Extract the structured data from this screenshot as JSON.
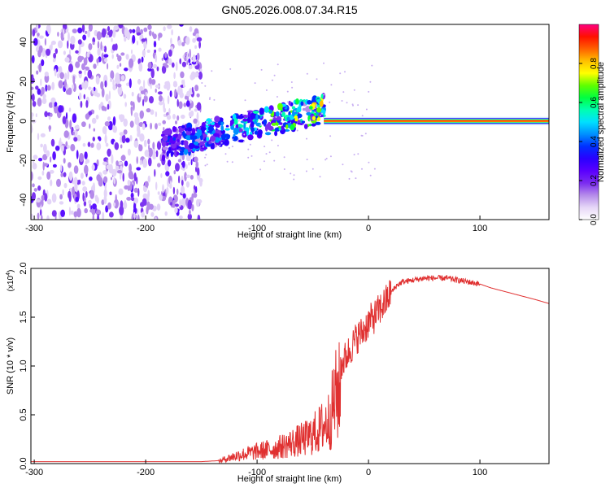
{
  "title": "GN05.2026.008.07.34.R15",
  "colors": {
    "snr_line": "#e03030",
    "colorbar_stops": [
      "#ffffff",
      "#e6d6f7",
      "#b58bea",
      "#7b2cf0",
      "#5a00ff",
      "#2a00ff",
      "#0030ff",
      "#0090ff",
      "#00e0ff",
      "#00ffb0",
      "#00ff40",
      "#60ff00",
      "#ffff00",
      "#ffc000",
      "#ff6000",
      "#ff1000",
      "#ff0080"
    ]
  },
  "chart_data": [
    {
      "type": "heatmap",
      "name": "spectrogram",
      "xlabel": "Height of straight line (km)",
      "ylabel": "Frequency (Hz)",
      "xlim": [
        -303,
        162
      ],
      "ylim": [
        -50,
        49
      ],
      "x_ticks": [
        -300,
        -200,
        -100,
        0,
        100
      ],
      "x_tick_labels": [
        "-300",
        "-200",
        "-100",
        "0",
        "100"
      ],
      "y_ticks": [
        -40,
        -20,
        0,
        20,
        40
      ],
      "y_tick_labels": [
        "-40",
        "-20",
        "0",
        "20",
        "40"
      ],
      "colorbar": {
        "label": "Normalized spectral amplitude",
        "range": [
          0,
          1
        ],
        "ticks": [
          0.0,
          0.2,
          0.4,
          0.6,
          0.8
        ],
        "tick_labels": [
          "0.0",
          "0.2",
          "0.4",
          "0.6",
          "0.8"
        ]
      },
      "regions": [
        {
          "x": [
            -303,
            -150
          ],
          "freq": [
            -50,
            49
          ],
          "amplitude": 0.08,
          "note": "noise"
        },
        {
          "x": [
            -185,
            -40
          ],
          "freq_center_start": -12,
          "freq_center_end": 6,
          "amplitude": 0.35
        },
        {
          "x": [
            -40,
            162
          ],
          "freq_center": 0,
          "amplitude": 0.95
        }
      ]
    },
    {
      "type": "line",
      "name": "snr",
      "xlabel": "Height of straight line (km)",
      "ylabel": "SNR (10 * v/v)",
      "exponent_label": "(x10",
      "exponent_power": "4",
      "exponent_close": ")",
      "xlim": [
        -303,
        162
      ],
      "ylim": [
        0,
        2.0
      ],
      "x_ticks": [
        -300,
        -200,
        -100,
        0,
        100
      ],
      "x_tick_labels": [
        "-300",
        "-200",
        "-100",
        "0",
        "100"
      ],
      "y_ticks": [
        0.0,
        0.5,
        1.0,
        1.5,
        2.0
      ],
      "y_tick_labels": [
        "0.0",
        "0.5",
        "1.0",
        "1.5",
        "2.0"
      ],
      "series": [
        {
          "x": [
            -303,
            -250,
            -200,
            -150,
            -135,
            -125,
            -115,
            -105,
            -95,
            -85,
            -75,
            -65,
            -55,
            -45,
            -35,
            -30,
            -25,
            -20,
            -15,
            -10,
            -5,
            0,
            5,
            10,
            15,
            20,
            25,
            30,
            40,
            50,
            60,
            70,
            80,
            90,
            100,
            110,
            120,
            130,
            140,
            150,
            162
          ],
          "y": [
            0.02,
            0.02,
            0.02,
            0.02,
            0.03,
            0.08,
            0.12,
            0.15,
            0.18,
            0.2,
            0.25,
            0.3,
            0.35,
            0.45,
            0.6,
            0.9,
            1.0,
            1.1,
            1.2,
            1.3,
            1.35,
            1.45,
            1.5,
            1.58,
            1.65,
            1.75,
            1.82,
            1.86,
            1.88,
            1.9,
            1.9,
            1.9,
            1.88,
            1.86,
            1.84,
            1.8,
            1.77,
            1.74,
            1.71,
            1.68,
            1.64
          ]
        }
      ]
    }
  ]
}
